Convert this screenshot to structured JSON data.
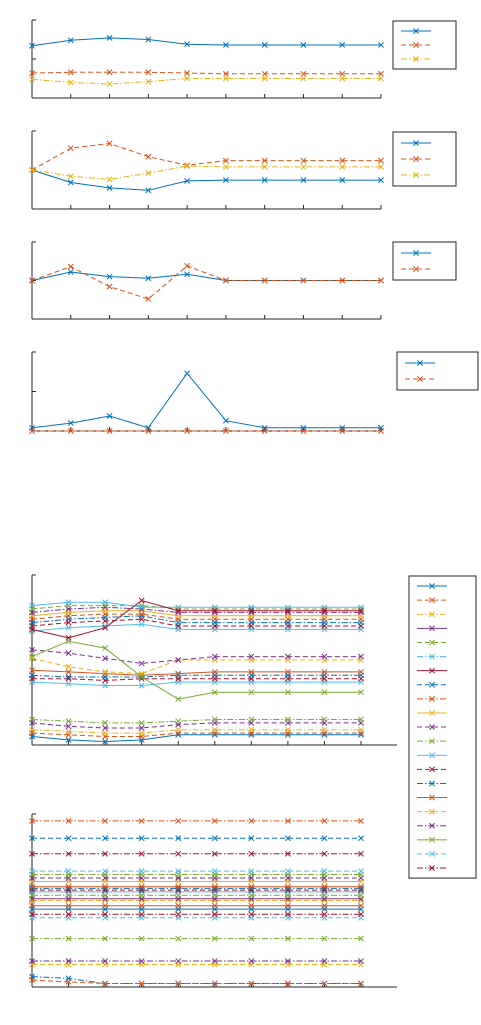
{
  "colors": [
    "#0072bd",
    "#d95319",
    "#edb120",
    "#7e2f8e",
    "#77ac30",
    "#4dbeee",
    "#a2142f"
  ],
  "chart_data": [
    {
      "type": "line",
      "x": [
        1,
        2,
        3,
        4,
        5,
        6,
        7,
        8,
        9,
        10
      ],
      "ylim": [
        0,
        1
      ],
      "grid": false,
      "legend": "outside-right",
      "series": [
        {
          "values": [
            0.67,
            0.74,
            0.77,
            0.75,
            0.69,
            0.68,
            0.68,
            0.68,
            0.68,
            0.68
          ],
          "style": "solid"
        },
        {
          "values": [
            0.32,
            0.33,
            0.33,
            0.33,
            0.32,
            0.31,
            0.31,
            0.31,
            0.31,
            0.31
          ],
          "style": "dashed"
        },
        {
          "values": [
            0.24,
            0.2,
            0.18,
            0.21,
            0.25,
            0.25,
            0.25,
            0.25,
            0.25,
            0.25
          ],
          "style": "dashdot"
        }
      ]
    },
    {
      "type": "line",
      "x": [
        1,
        2,
        3,
        4,
        5,
        6,
        7,
        8,
        9,
        10
      ],
      "ylim": [
        0,
        1
      ],
      "grid": false,
      "legend": "outside-right",
      "series": [
        {
          "values": [
            0.5,
            0.34,
            0.27,
            0.24,
            0.36,
            0.37,
            0.37,
            0.37,
            0.37,
            0.37
          ],
          "style": "solid"
        },
        {
          "values": [
            0.5,
            0.78,
            0.84,
            0.67,
            0.56,
            0.62,
            0.62,
            0.62,
            0.62,
            0.62
          ],
          "style": "dashed"
        },
        {
          "values": [
            0.5,
            0.42,
            0.38,
            0.46,
            0.55,
            0.54,
            0.54,
            0.54,
            0.54,
            0.54
          ],
          "style": "dashdot"
        }
      ]
    },
    {
      "type": "line",
      "x": [
        1,
        2,
        3,
        4,
        5,
        6,
        7,
        8,
        9,
        10
      ],
      "ylim": [
        0,
        1
      ],
      "grid": false,
      "legend": "outside-right",
      "series": [
        {
          "values": [
            0.5,
            0.61,
            0.55,
            0.53,
            0.58,
            0.5,
            0.5,
            0.5,
            0.5,
            0.5
          ],
          "style": "solid"
        },
        {
          "values": [
            0.5,
            0.68,
            0.42,
            0.26,
            0.69,
            0.5,
            0.5,
            0.5,
            0.5,
            0.5
          ],
          "style": "dashed"
        }
      ]
    },
    {
      "type": "line",
      "x": [
        1,
        2,
        3,
        4,
        5,
        6,
        7,
        8,
        9,
        10
      ],
      "ylim": [
        0,
        1
      ],
      "grid": false,
      "legend": "outside-right",
      "series": [
        {
          "values": [
            0.04,
            0.1,
            0.19,
            0.04,
            0.73,
            0.13,
            0.04,
            0.04,
            0.04,
            0.04
          ],
          "style": "solid"
        },
        {
          "values": [
            0.0,
            0.0,
            0.0,
            0.0,
            0.0,
            0.0,
            0.0,
            0.0,
            0.0,
            0.0
          ],
          "style": "dashed"
        }
      ]
    },
    {
      "type": "line",
      "x": [
        1,
        2,
        3,
        4,
        5,
        6,
        7,
        8,
        9,
        10
      ],
      "ylim": [
        0,
        1
      ],
      "grid": false,
      "legend": "outside-right",
      "series": [
        {
          "values": [
            0.05,
            0.03,
            0.02,
            0.03,
            0.06,
            0.06,
            0.06,
            0.06,
            0.06,
            0.06
          ],
          "style": "solid"
        },
        {
          "values": [
            0.07,
            0.06,
            0.05,
            0.05,
            0.07,
            0.07,
            0.07,
            0.07,
            0.07,
            0.07
          ],
          "style": "dashed"
        },
        {
          "values": [
            0.09,
            0.08,
            0.07,
            0.07,
            0.09,
            0.09,
            0.09,
            0.09,
            0.09,
            0.09
          ],
          "style": "dashdot"
        },
        {
          "values": [
            0.13,
            0.11,
            0.1,
            0.1,
            0.12,
            0.13,
            0.13,
            0.13,
            0.13,
            0.13
          ],
          "style": "dashed"
        },
        {
          "values": [
            0.15,
            0.14,
            0.13,
            0.13,
            0.14,
            0.15,
            0.15,
            0.15,
            0.15,
            0.15
          ],
          "style": "dashdot"
        },
        {
          "values": [
            0.37,
            0.36,
            0.35,
            0.35,
            0.37,
            0.37,
            0.37,
            0.37,
            0.37,
            0.37
          ],
          "style": "solid"
        },
        {
          "values": [
            0.39,
            0.39,
            0.38,
            0.39,
            0.39,
            0.39,
            0.39,
            0.39,
            0.39,
            0.39
          ],
          "style": "dashed"
        },
        {
          "values": [
            0.41,
            0.4,
            0.4,
            0.4,
            0.41,
            0.41,
            0.41,
            0.41,
            0.41,
            0.41
          ],
          "style": "dashdot"
        },
        {
          "values": [
            0.44,
            0.43,
            0.42,
            0.41,
            0.42,
            0.43,
            0.43,
            0.43,
            0.43,
            0.43
          ],
          "style": "solid"
        },
        {
          "values": [
            0.51,
            0.46,
            0.43,
            0.42,
            0.5,
            0.5,
            0.5,
            0.5,
            0.5,
            0.5
          ],
          "style": "dashed"
        },
        {
          "values": [
            0.56,
            0.54,
            0.51,
            0.48,
            0.5,
            0.52,
            0.52,
            0.52,
            0.52,
            0.52
          ],
          "style": "dashed"
        },
        {
          "values": [
            0.52,
            0.61,
            0.57,
            0.4,
            0.27,
            0.31,
            0.31,
            0.31,
            0.31,
            0.31
          ],
          "style": "solid"
        },
        {
          "values": [
            0.67,
            0.69,
            0.7,
            0.71,
            0.68,
            0.68,
            0.68,
            0.68,
            0.68,
            0.68
          ],
          "style": "solid"
        },
        {
          "values": [
            0.7,
            0.72,
            0.73,
            0.74,
            0.7,
            0.7,
            0.7,
            0.7,
            0.7,
            0.7
          ],
          "style": "dashed"
        },
        {
          "values": [
            0.72,
            0.74,
            0.75,
            0.76,
            0.72,
            0.72,
            0.72,
            0.72,
            0.72,
            0.72
          ],
          "style": "dashdot"
        },
        {
          "values": [
            0.74,
            0.76,
            0.77,
            0.77,
            0.74,
            0.74,
            0.74,
            0.74,
            0.74,
            0.74
          ],
          "style": "dashed"
        },
        {
          "values": [
            0.76,
            0.78,
            0.79,
            0.79,
            0.76,
            0.76,
            0.76,
            0.76,
            0.76,
            0.76
          ],
          "style": "solid"
        },
        {
          "values": [
            0.78,
            0.8,
            0.81,
            0.8,
            0.78,
            0.78,
            0.78,
            0.78,
            0.78,
            0.78
          ],
          "style": "dashdot"
        },
        {
          "values": [
            0.8,
            0.82,
            0.82,
            0.82,
            0.8,
            0.8,
            0.8,
            0.8,
            0.8,
            0.8
          ],
          "style": "dashed"
        },
        {
          "values": [
            0.82,
            0.84,
            0.84,
            0.81,
            0.81,
            0.81,
            0.81,
            0.81,
            0.81,
            0.81
          ],
          "style": "solid"
        },
        {
          "values": [
            0.68,
            0.63,
            0.69,
            0.85,
            0.79,
            0.79,
            0.79,
            0.79,
            0.79,
            0.79
          ],
          "style": "solid"
        }
      ]
    },
    {
      "type": "line",
      "x": [
        1,
        2,
        3,
        4,
        5,
        6,
        7,
        8,
        9,
        10
      ],
      "ylim": [
        0,
        1
      ],
      "grid": false,
      "series": [
        {
          "values": [
            0.06,
            0.05,
            0.02,
            0.02,
            0.02,
            0.02,
            0.02,
            0.02,
            0.02,
            0.02
          ],
          "style": "dashdot"
        },
        {
          "values": [
            0.04,
            0.03,
            0.02,
            0.02,
            0.02,
            0.02,
            0.02,
            0.02,
            0.02,
            0.02
          ],
          "style": "dashed"
        },
        {
          "values": [
            0.13,
            0.13,
            0.13,
            0.13,
            0.13,
            0.13,
            0.13,
            0.13,
            0.13,
            0.13
          ],
          "style": "dashed"
        },
        {
          "values": [
            0.15,
            0.15,
            0.15,
            0.15,
            0.15,
            0.15,
            0.15,
            0.15,
            0.15,
            0.15
          ],
          "style": "dashdot"
        },
        {
          "values": [
            0.28,
            0.28,
            0.28,
            0.28,
            0.28,
            0.28,
            0.28,
            0.28,
            0.28,
            0.28
          ],
          "style": "dashdot"
        },
        {
          "values": [
            0.4,
            0.4,
            0.4,
            0.4,
            0.4,
            0.4,
            0.4,
            0.4,
            0.4,
            0.4
          ],
          "style": "dashed"
        },
        {
          "values": [
            0.42,
            0.42,
            0.42,
            0.42,
            0.42,
            0.42,
            0.42,
            0.42,
            0.42,
            0.42
          ],
          "style": "dashdot"
        },
        {
          "values": [
            0.45,
            0.45,
            0.45,
            0.45,
            0.45,
            0.45,
            0.45,
            0.45,
            0.45,
            0.45
          ],
          "style": "solid"
        },
        {
          "values": [
            0.47,
            0.47,
            0.47,
            0.47,
            0.47,
            0.47,
            0.47,
            0.47,
            0.47,
            0.47
          ],
          "style": "solid"
        },
        {
          "values": [
            0.5,
            0.5,
            0.5,
            0.5,
            0.5,
            0.5,
            0.5,
            0.5,
            0.5,
            0.5
          ],
          "style": "dashed"
        },
        {
          "values": [
            0.51,
            0.51,
            0.51,
            0.51,
            0.51,
            0.51,
            0.51,
            0.51,
            0.51,
            0.51
          ],
          "style": "solid"
        },
        {
          "values": [
            0.53,
            0.53,
            0.53,
            0.53,
            0.53,
            0.53,
            0.53,
            0.53,
            0.53,
            0.53
          ],
          "style": "dashdot"
        },
        {
          "values": [
            0.55,
            0.55,
            0.55,
            0.55,
            0.55,
            0.55,
            0.55,
            0.55,
            0.55,
            0.55
          ],
          "style": "solid"
        },
        {
          "values": [
            0.56,
            0.56,
            0.56,
            0.56,
            0.56,
            0.56,
            0.56,
            0.56,
            0.56,
            0.56
          ],
          "style": "dashed"
        },
        {
          "values": [
            0.57,
            0.57,
            0.57,
            0.57,
            0.57,
            0.57,
            0.57,
            0.57,
            0.57,
            0.57
          ],
          "style": "dashdot"
        },
        {
          "values": [
            0.58,
            0.58,
            0.58,
            0.58,
            0.58,
            0.58,
            0.58,
            0.58,
            0.58,
            0.58
          ],
          "style": "solid"
        },
        {
          "values": [
            0.61,
            0.61,
            0.61,
            0.61,
            0.61,
            0.61,
            0.61,
            0.61,
            0.61,
            0.61
          ],
          "style": "solid"
        },
        {
          "values": [
            0.63,
            0.63,
            0.63,
            0.63,
            0.63,
            0.63,
            0.63,
            0.63,
            0.63,
            0.63
          ],
          "style": "dashed"
        },
        {
          "values": [
            0.65,
            0.65,
            0.65,
            0.65,
            0.65,
            0.65,
            0.65,
            0.65,
            0.65,
            0.65
          ],
          "style": "dashdot"
        },
        {
          "values": [
            0.67,
            0.67,
            0.67,
            0.67,
            0.67,
            0.67,
            0.67,
            0.67,
            0.67,
            0.67
          ],
          "style": "dashed"
        },
        {
          "values": [
            0.77,
            0.77,
            0.77,
            0.77,
            0.77,
            0.77,
            0.77,
            0.77,
            0.77,
            0.77
          ],
          "style": "dashdot"
        },
        {
          "values": [
            0.86,
            0.86,
            0.86,
            0.86,
            0.86,
            0.86,
            0.86,
            0.86,
            0.86,
            0.86
          ],
          "style": "dashed"
        },
        {
          "values": [
            0.96,
            0.96,
            0.96,
            0.96,
            0.96,
            0.96,
            0.96,
            0.96,
            0.96,
            0.96
          ],
          "style": "dashdot"
        }
      ]
    }
  ],
  "legends": [
    {
      "entries": [
        {
          "style": "solid"
        },
        {
          "style": "dashed"
        },
        {
          "style": "dashdot"
        }
      ]
    },
    {
      "entries": [
        {
          "style": "solid"
        },
        {
          "style": "dashed"
        },
        {
          "style": "dashdot"
        }
      ]
    },
    {
      "entries": [
        {
          "style": "solid"
        },
        {
          "style": "dashed"
        }
      ]
    },
    {
      "entries": [
        {
          "style": "solid"
        },
        {
          "style": "dashed"
        }
      ]
    },
    {
      "entries": [
        {
          "style": "solid"
        },
        {
          "style": "dashed"
        },
        {
          "style": "dashdot"
        },
        {
          "style": "solid"
        },
        {
          "style": "dashed"
        },
        {
          "style": "dashdot"
        },
        {
          "style": "solid"
        },
        {
          "style": "dashed"
        },
        {
          "style": "dashdot"
        },
        {
          "style": "solid"
        },
        {
          "style": "dashed"
        },
        {
          "style": "dashdot"
        },
        {
          "style": "solid"
        },
        {
          "style": "dashed"
        },
        {
          "style": "dashdot"
        },
        {
          "style": "solid"
        },
        {
          "style": "dashed"
        },
        {
          "style": "dashdot"
        },
        {
          "style": "solid"
        },
        {
          "style": "dashed"
        },
        {
          "style": "dashdot"
        }
      ]
    }
  ]
}
